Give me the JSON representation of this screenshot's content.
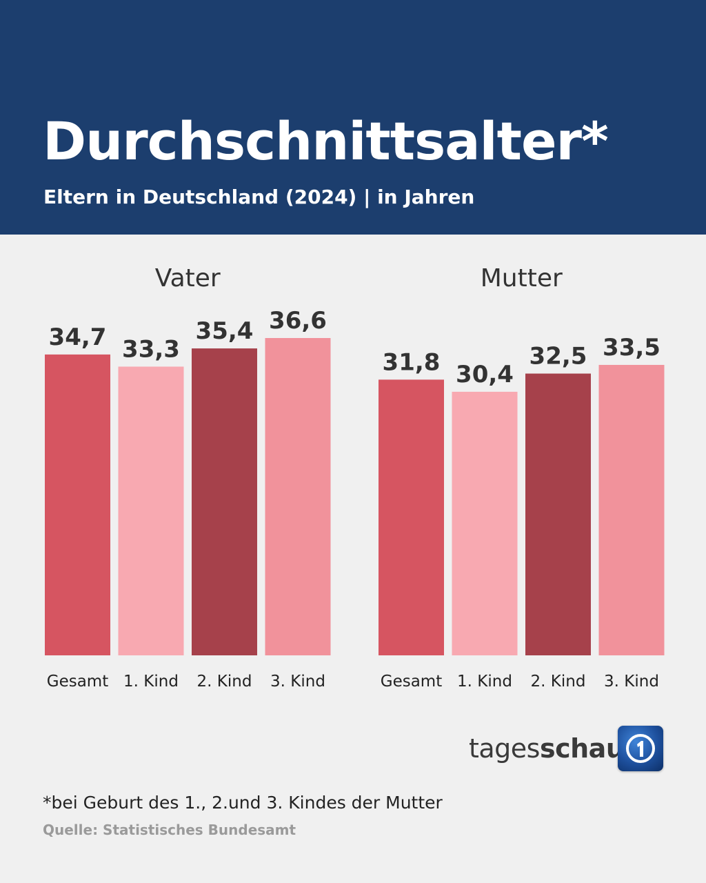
{
  "header": {
    "title": "Durchschnittsalter*",
    "subtitle": "Eltern in Deutschland (2024) | in Jahren"
  },
  "chart_data": {
    "type": "bar",
    "categories": [
      "Gesamt",
      "1. Kind",
      "2. Kind",
      "3. Kind"
    ],
    "panels": [
      {
        "name": "Vater",
        "values": [
          34.7,
          33.3,
          35.4,
          36.6
        ],
        "labels": [
          "34,7",
          "33,3",
          "35,4",
          "36,6"
        ]
      },
      {
        "name": "Mutter",
        "values": [
          31.8,
          30.4,
          32.5,
          33.5
        ],
        "labels": [
          "31,8",
          "30,4",
          "32,5",
          "33,5"
        ]
      }
    ],
    "colors": [
      "#d65561",
      "#f8a9b1",
      "#a6414b",
      "#f1929b"
    ],
    "ylim": [
      0,
      36.6
    ],
    "grid": false
  },
  "branding": {
    "name_regular": "tages",
    "name_bold": "schau",
    "logo_icon": "ard-tagesschau-logo-icon"
  },
  "footnote": "*bei Geburt des 1., 2.und 3. Kindes der Mutter",
  "source": "Quelle: Statistisches Bundesamt"
}
